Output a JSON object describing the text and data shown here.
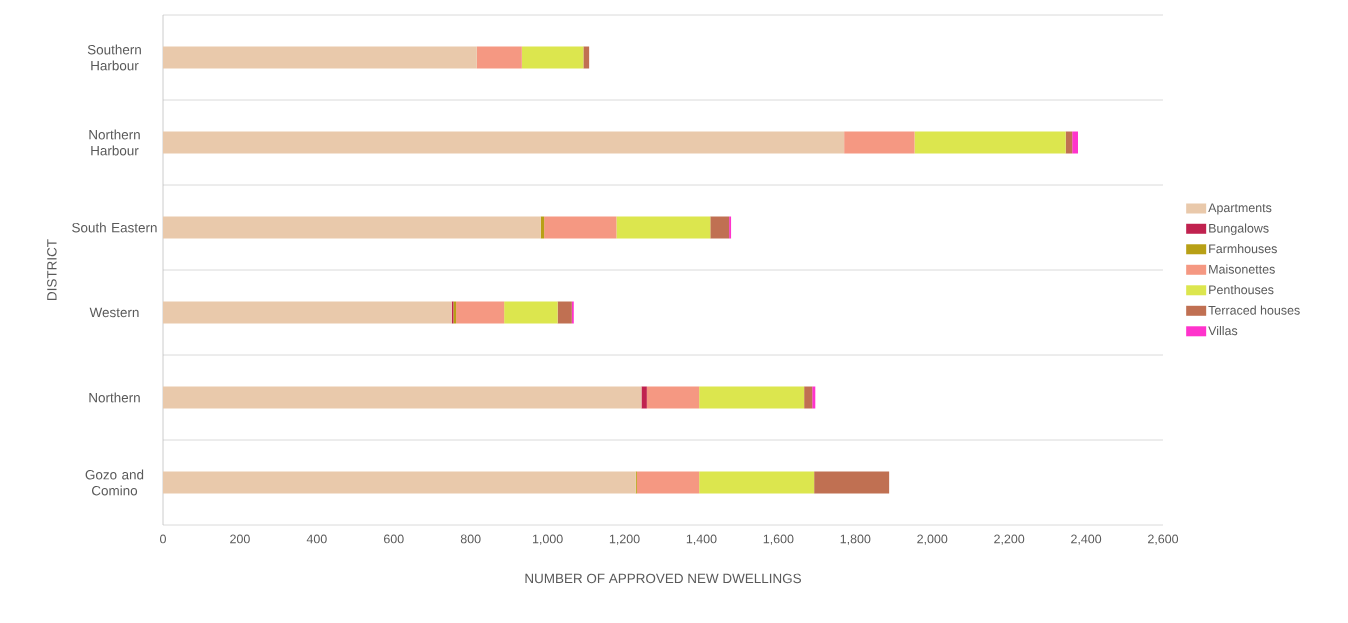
{
  "chart_data": {
    "type": "bar",
    "orientation": "horizontal",
    "stacked": true,
    "xlabel": "NUMBER OF APPROVED NEW DWELLINGS",
    "ylabel": "DISTRICT",
    "categories": [
      "Southern Harbour",
      "Northern Harbour",
      "South Eastern",
      "Western",
      "Northern",
      "Gozo and Comino"
    ],
    "series": [
      {
        "name": "Apartments",
        "color": "#e9c9ab",
        "values": [
          816,
          1771,
          982,
          751,
          1244,
          1229
        ]
      },
      {
        "name": "Bungalows",
        "color": "#c0224f",
        "values": [
          0,
          0,
          0,
          4,
          14,
          0
        ]
      },
      {
        "name": "Farmhouses",
        "color": "#b8a016",
        "values": [
          0,
          0,
          9,
          7,
          0,
          3
        ]
      },
      {
        "name": "Maisonettes",
        "color": "#f59882",
        "values": [
          117,
          183,
          188,
          125,
          136,
          162
        ]
      },
      {
        "name": "Penthouses",
        "color": "#dce64e",
        "values": [
          160,
          393,
          244,
          139,
          273,
          299
        ]
      },
      {
        "name": "Terraced houses",
        "color": "#c07052",
        "values": [
          15,
          17,
          49,
          37,
          21,
          195
        ]
      },
      {
        "name": "Villas",
        "color": "#ff33cc",
        "values": [
          0,
          15,
          5,
          5,
          8,
          0
        ]
      }
    ],
    "xlim": [
      0,
      2600
    ],
    "xticks": [
      0,
      200,
      400,
      600,
      800,
      {
        "value": 1000,
        "label": "1,000"
      },
      {
        "value": 1200,
        "label": "1,200"
      },
      {
        "value": 1400,
        "label": "1,400"
      },
      {
        "value": 1600,
        "label": "1,600"
      },
      {
        "value": 1800,
        "label": "1,800"
      },
      {
        "value": 2000,
        "label": "2,000"
      },
      {
        "value": 2200,
        "label": "2,200"
      },
      {
        "value": 2400,
        "label": "2,400"
      },
      {
        "value": 2600,
        "label": "2,600"
      }
    ],
    "grid": "y",
    "legend": "right"
  }
}
